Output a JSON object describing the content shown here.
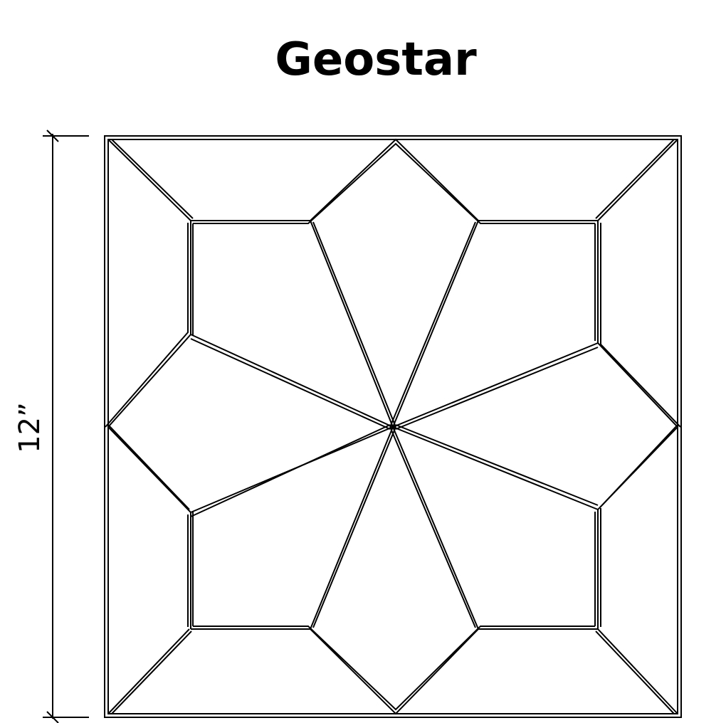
{
  "title": "Geostar",
  "dimension": {
    "label": "12”"
  },
  "colors": {
    "line": "#000000",
    "background": "#ffffff"
  }
}
